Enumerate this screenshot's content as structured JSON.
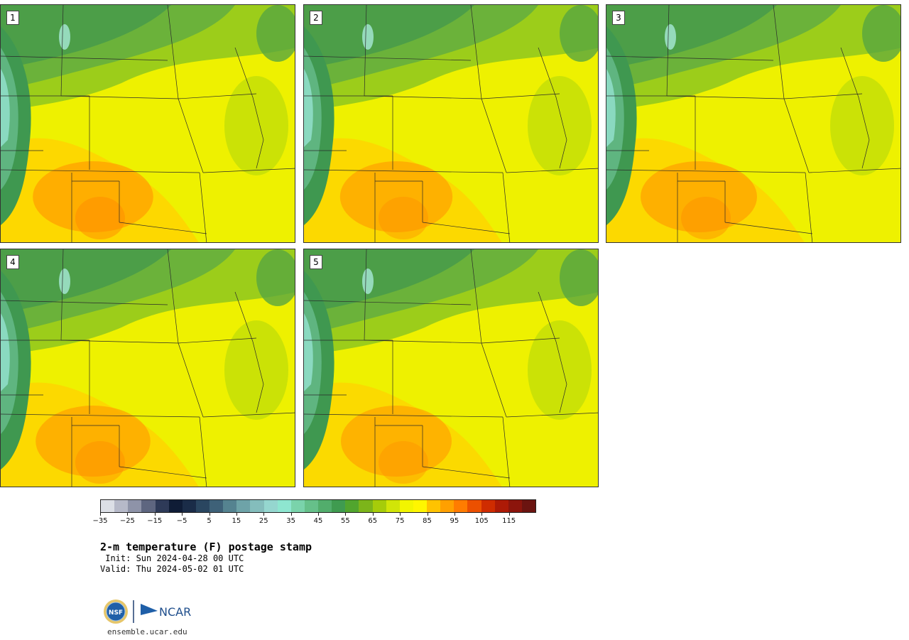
{
  "panels": [
    {
      "label": "1",
      "warmth": 0.62
    },
    {
      "label": "2",
      "warmth": 0.48
    },
    {
      "label": "3",
      "warmth": 0.55
    },
    {
      "label": "4",
      "warmth": 0.52
    },
    {
      "label": "5",
      "warmth": 0.45
    }
  ],
  "colorbar": {
    "colors": [
      "#dcdfe6",
      "#b6b9c8",
      "#8e93a8",
      "#5e6680",
      "#2e3a58",
      "#0f1c36",
      "#1a2c48",
      "#2a4660",
      "#3e6178",
      "#558390",
      "#6ea3a8",
      "#84bdbc",
      "#95d6cf",
      "#8ee6d0",
      "#7ad3ab",
      "#66c08a",
      "#52ad6c",
      "#3f9b50",
      "#51a52e",
      "#7cb51a",
      "#a6cc0a",
      "#d1e508",
      "#f2f500",
      "#fff600",
      "#ffc300",
      "#ffa000",
      "#ff7c00",
      "#ec5000",
      "#cf2c00",
      "#ad1a06",
      "#8c150c",
      "#6b1410"
    ],
    "tick_labels": [
      "−35",
      "−25",
      "−15",
      "−5",
      "5",
      "15",
      "25",
      "35",
      "45",
      "55",
      "65",
      "75",
      "85",
      "95",
      "105",
      "115"
    ]
  },
  "title": "2-m temperature (F) postage stamp",
  "init": " Init: Sun 2024-04-28 00 UTC",
  "valid": "Valid: Thu 2024-05-02 01 UTC",
  "logo": {
    "nsf_text": "NSF",
    "ncar_text": "NCAR"
  },
  "website": "ensemble.ucar.edu"
}
